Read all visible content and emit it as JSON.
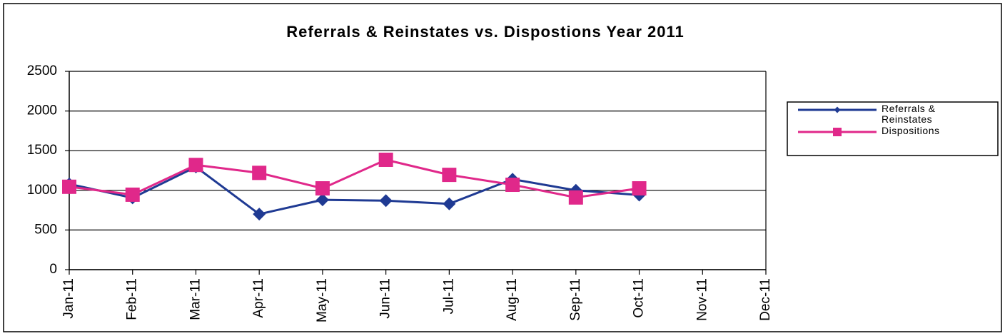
{
  "chart_data": {
    "type": "line",
    "title": "Referrals & Reinstates vs. Dispostions  Year 2011",
    "categories": [
      "Jan-11",
      "Feb-11",
      "Mar-11",
      "Apr-11",
      "May-11",
      "Jun-11",
      "Jul-11",
      "Aug-11",
      "Sep-11",
      "Oct-11",
      "Nov-11",
      "Dec-11"
    ],
    "series": [
      {
        "name": "Referrals & Reinstates",
        "color": "#1f3a93",
        "marker": "diamond",
        "values": [
          1080,
          905,
          1295,
          700,
          880,
          870,
          830,
          1140,
          1000,
          940,
          null,
          null
        ]
      },
      {
        "name": "Dispositions",
        "color": "#e0288a",
        "marker": "square",
        "values": [
          1045,
          945,
          1320,
          1220,
          1025,
          1385,
          1195,
          1070,
          910,
          1025,
          null,
          null
        ]
      }
    ],
    "ylim": [
      0,
      2500
    ],
    "yticks": [
      0,
      500,
      1000,
      1500,
      2000,
      2500
    ],
    "grid": true,
    "legend": "right"
  }
}
